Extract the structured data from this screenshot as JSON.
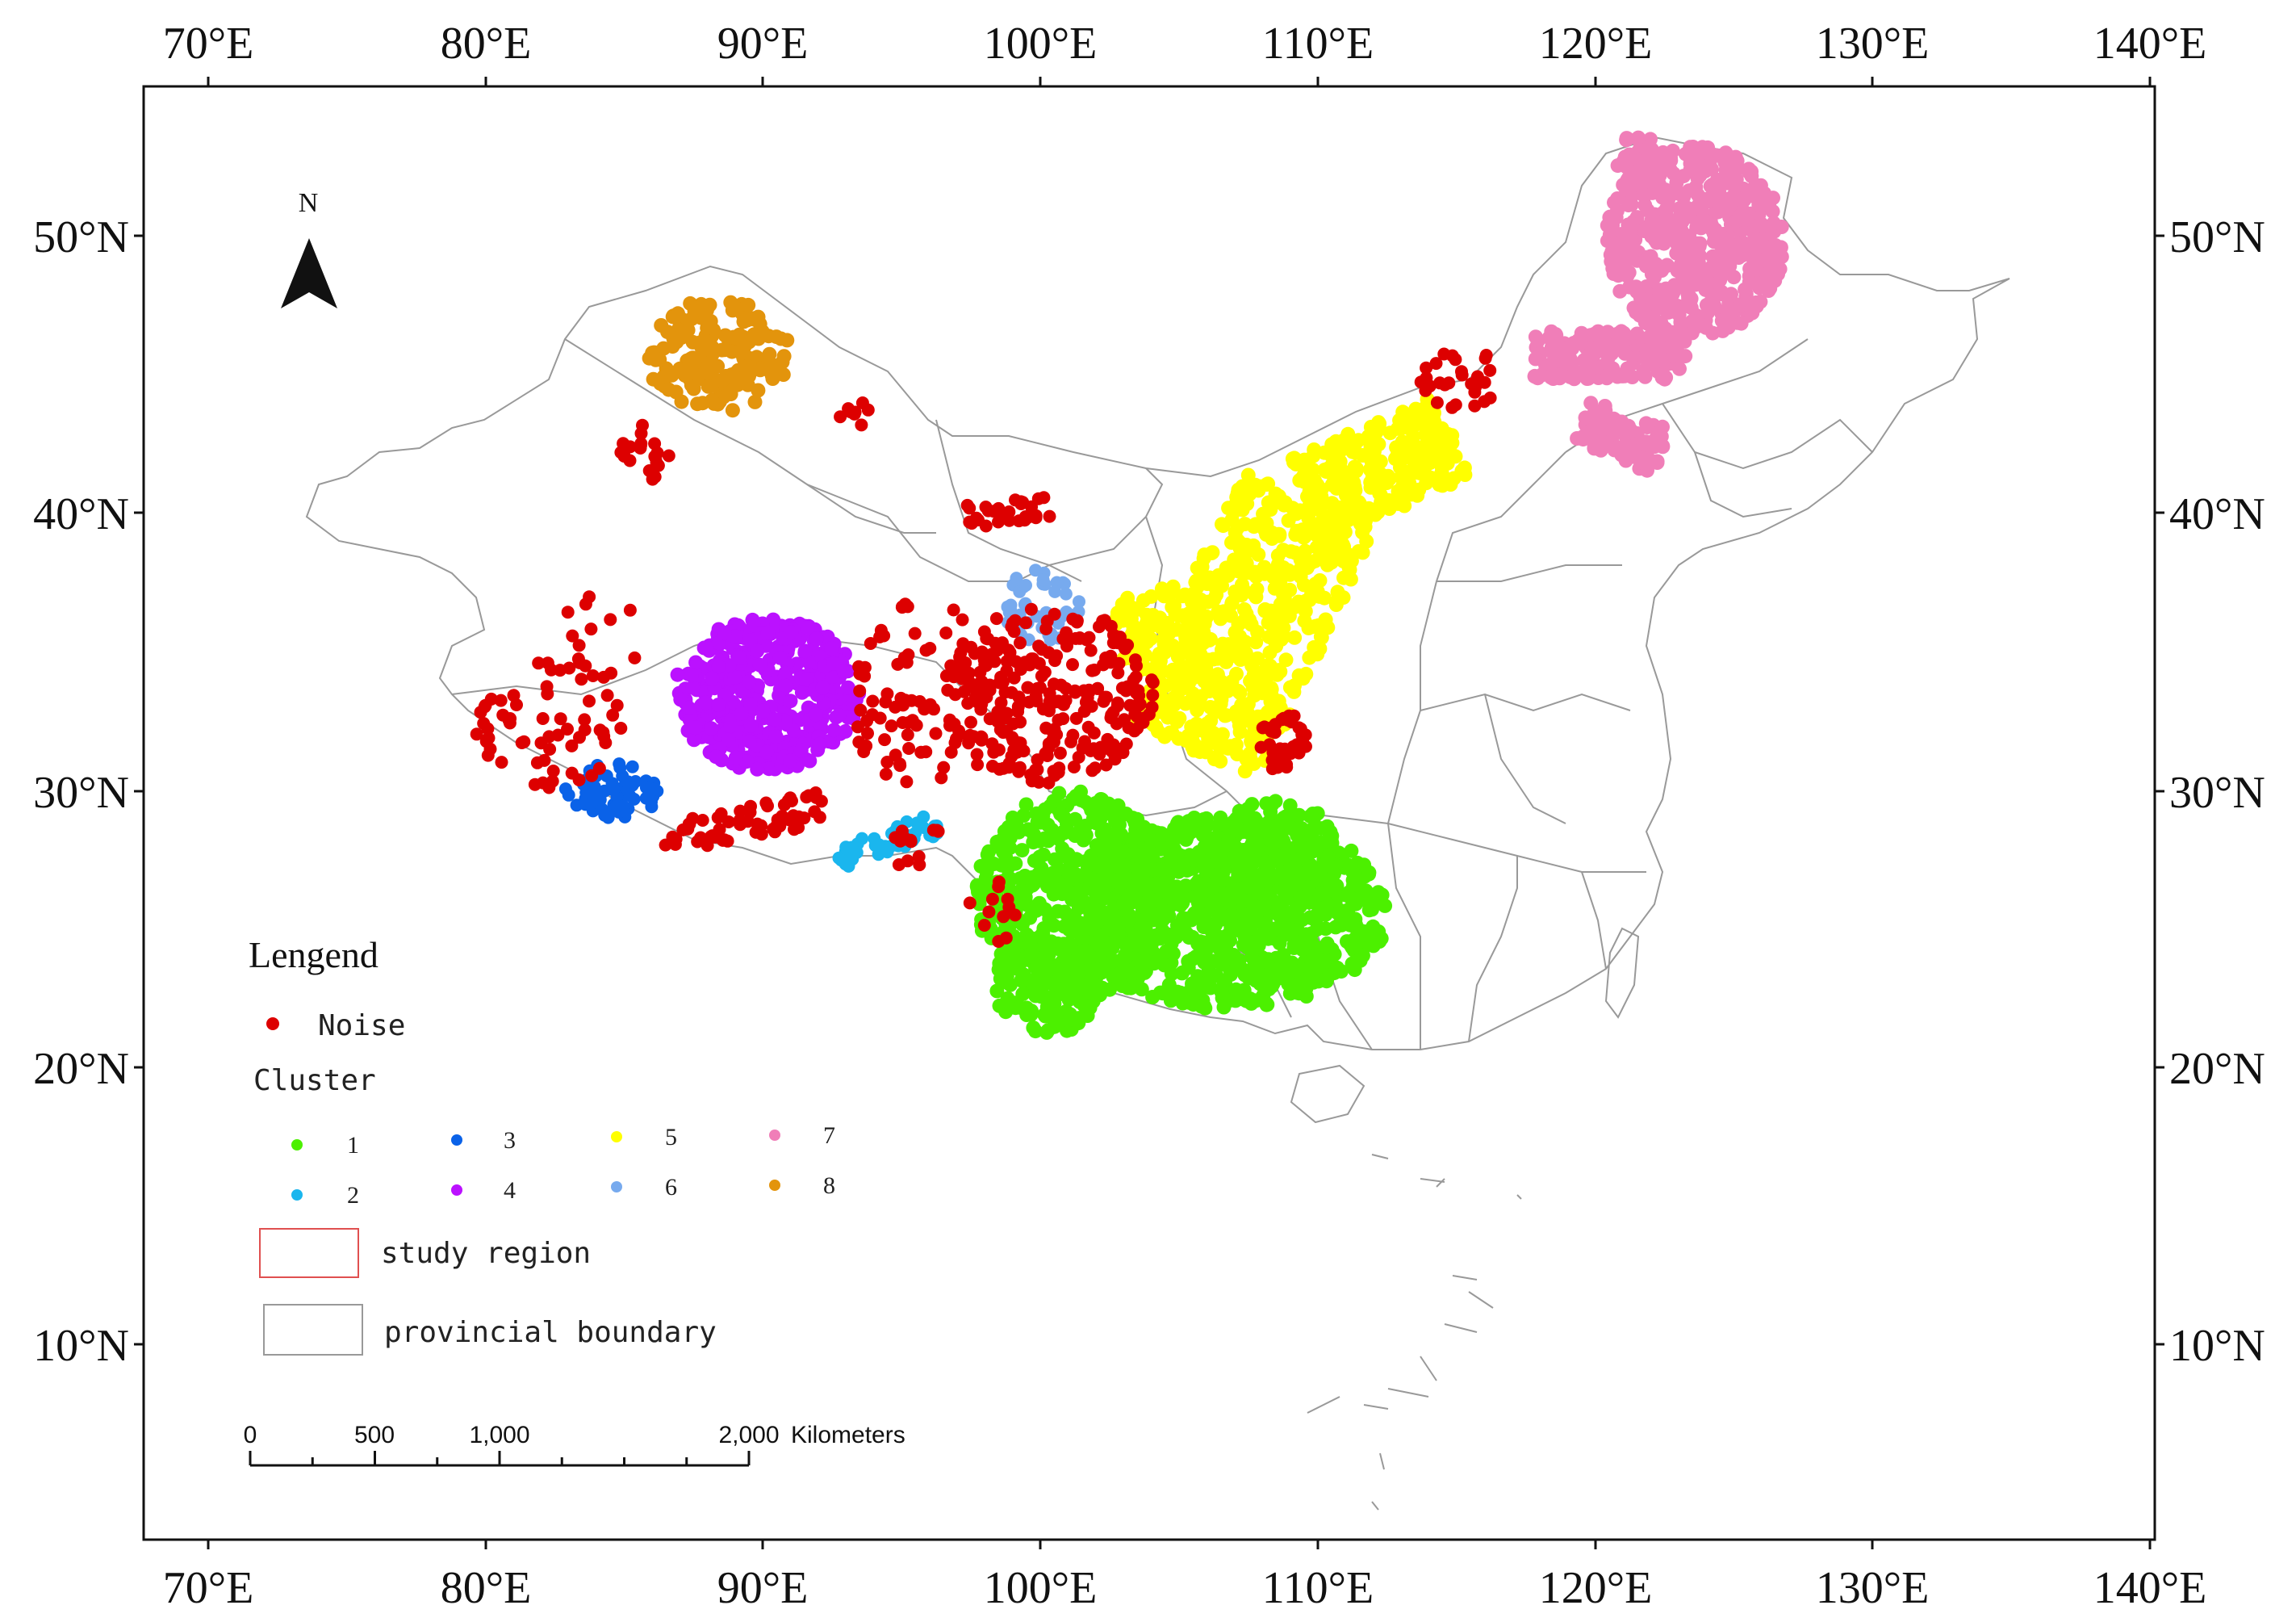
{
  "map": {
    "x_ticks": [
      "70°E",
      "80°E",
      "90°E",
      "100°E",
      "110°E",
      "120°E",
      "130°E",
      "140°E"
    ],
    "y_ticks": [
      "50°N",
      "40°N",
      "30°N",
      "20°N",
      "10°N"
    ],
    "north_label": "N",
    "colors": {
      "noise": "#dd0000",
      "c1": "#4cf000",
      "c2": "#1ab6ee",
      "c3": "#0a62e8",
      "c4": "#bb11ff",
      "c5": "#ffff00",
      "c6": "#77aaee",
      "c7": "#f07eb8",
      "c8": "#e3940c",
      "boundary": "#999999",
      "study_region": "#e05050"
    }
  },
  "legend": {
    "title": "Lengend",
    "noise_label": "Noise",
    "cluster_label": "Cluster",
    "clusters": [
      "1",
      "2",
      "3",
      "4",
      "5",
      "6",
      "7",
      "8"
    ],
    "study_region_label": "study region",
    "boundary_label": "provincial boundary"
  },
  "scale_bar": {
    "labels": [
      "0",
      "500",
      "1,000",
      "2,000"
    ],
    "unit": "Kilometers"
  }
}
